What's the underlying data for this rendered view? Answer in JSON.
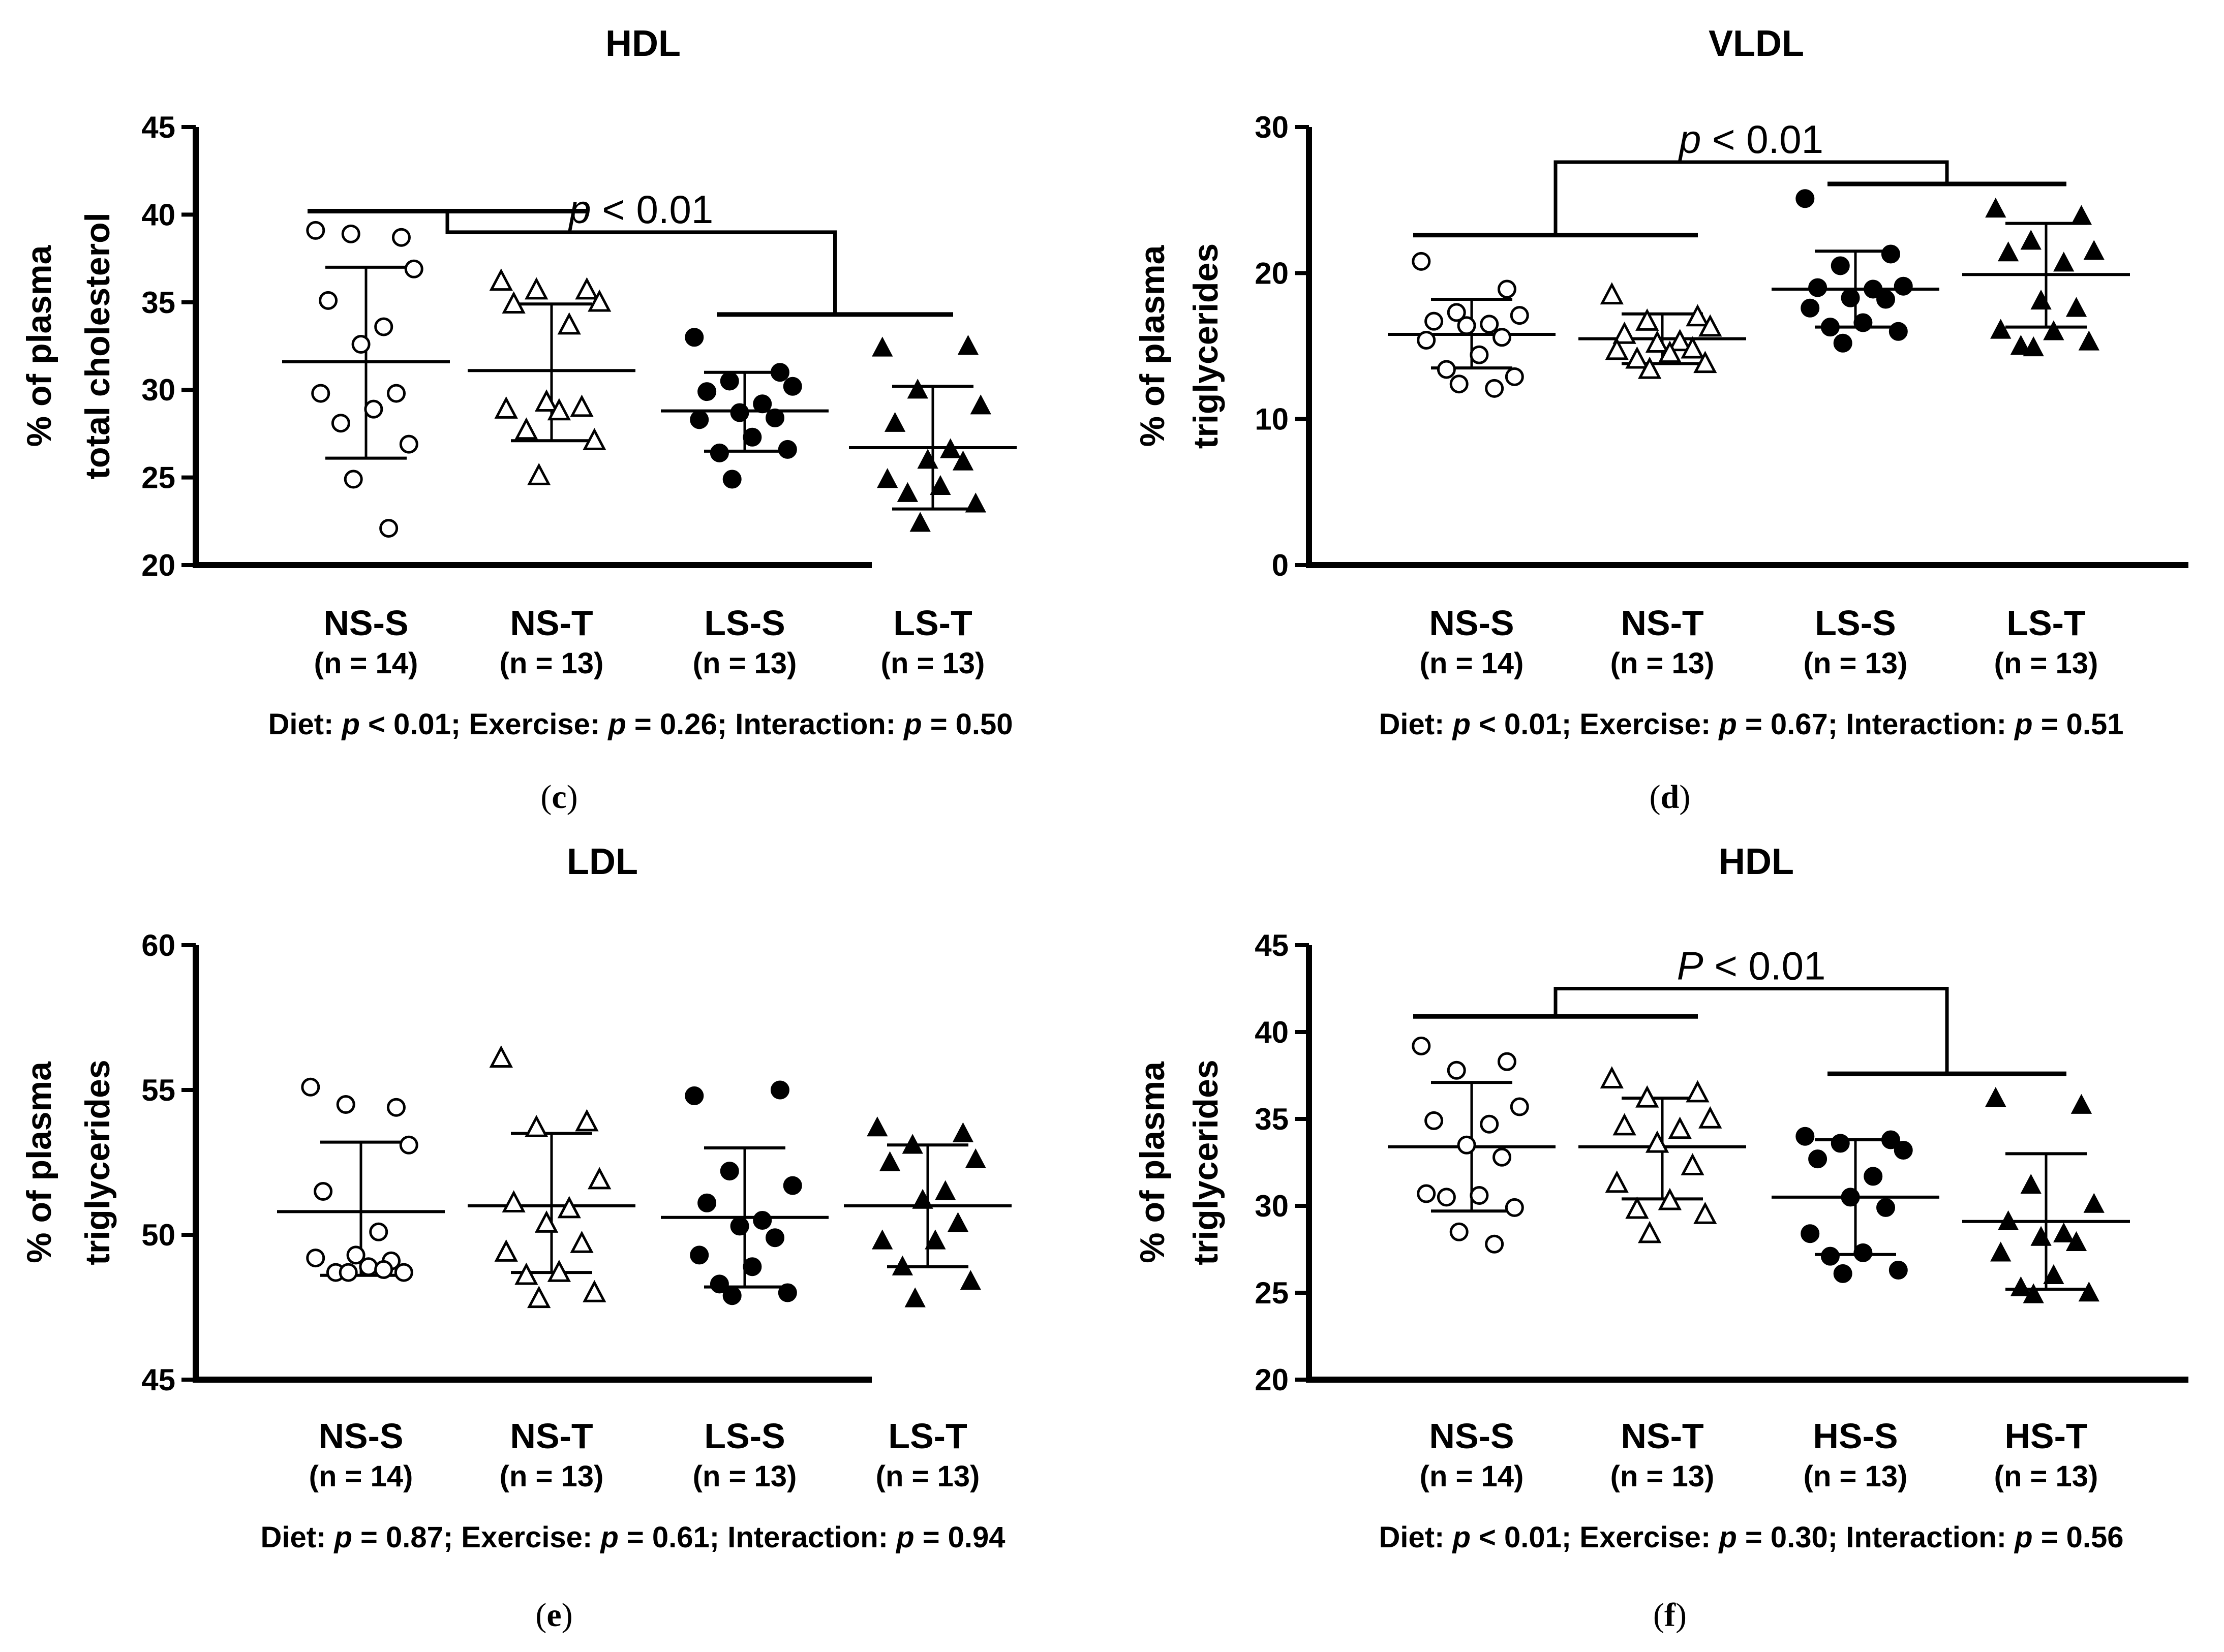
{
  "chart_data": [
    {
      "type": "scatter",
      "panel_label": "c",
      "title": "HDL",
      "ylabel": [
        "% of plasma",
        "total cholesterol"
      ],
      "ylim": [
        20,
        45
      ],
      "yticks": [
        20,
        25,
        30,
        35,
        40,
        45
      ],
      "categories": [
        "NS-S",
        "NS-T",
        "LS-S",
        "LS-T"
      ],
      "n_labels": [
        "(n = 14)",
        "(n = 13)",
        "(n = 13)",
        "(n = 13)"
      ],
      "groups": [
        {
          "name": "NS-S",
          "marker": "open-circle",
          "mean": 31.6,
          "sd_low": 26.1,
          "sd_high": 37.0,
          "values": [
            39.1,
            38.7,
            38.9,
            36.9,
            35.1,
            33.6,
            32.6,
            29.8,
            29.8,
            28.9,
            28.1,
            26.9,
            24.9,
            22.1
          ]
        },
        {
          "name": "NS-T",
          "marker": "open-triangle",
          "mean": 31.1,
          "sd_low": 27.1,
          "sd_high": 34.9,
          "values": [
            36.2,
            35.7,
            35.7,
            35.0,
            34.9,
            33.7,
            29.3,
            29.0,
            28.9,
            28.8,
            27.7,
            27.1,
            25.1
          ]
        },
        {
          "name": "LS-S",
          "marker": "filled-circle",
          "mean": 28.8,
          "sd_low": 26.5,
          "sd_high": 31.0,
          "values": [
            33.0,
            31.0,
            30.5,
            30.2,
            29.9,
            29.2,
            28.7,
            28.4,
            28.3,
            27.3,
            26.4,
            26.6,
            24.9
          ]
        },
        {
          "name": "LS-T",
          "marker": "filled-triangle",
          "mean": 26.7,
          "sd_low": 23.2,
          "sd_high": 30.2,
          "values": [
            32.4,
            32.5,
            30.0,
            29.1,
            28.1,
            26.6,
            26.0,
            25.9,
            24.9,
            24.5,
            24.1,
            23.5,
            22.4
          ]
        }
      ],
      "bracket": {
        "left": [
          0,
          1
        ],
        "right": [
          2,
          3
        ],
        "label_italic": "p",
        "label_rest": " < 0.01",
        "left_y": 40.2,
        "right_y": 34.3,
        "top_y": 39.0
      },
      "stats_text": [
        {
          "t": "Diet: "
        },
        {
          "t": "p",
          "i": true
        },
        {
          "t": " < 0.01; Exercise: "
        },
        {
          "t": "p",
          "i": true
        },
        {
          "t": " = 0.26; Interaction: "
        },
        {
          "t": "p",
          "i": true
        },
        {
          "t": " = 0.50"
        }
      ]
    },
    {
      "type": "scatter",
      "panel_label": "d",
      "title": "VLDL",
      "ylabel": [
        "% of plasma",
        "triglycerides"
      ],
      "ylim": [
        0,
        30
      ],
      "yticks": [
        0,
        10,
        20,
        30
      ],
      "categories": [
        "NS-S",
        "NS-T",
        "LS-S",
        "LS-T"
      ],
      "n_labels": [
        "(n = 14)",
        "(n = 13)",
        "(n = 13)",
        "(n = 13)"
      ],
      "groups": [
        {
          "name": "NS-S",
          "marker": "open-circle",
          "mean": 15.8,
          "sd_low": 13.5,
          "sd_high": 18.2,
          "values": [
            20.8,
            18.9,
            17.3,
            17.1,
            16.7,
            16.5,
            16.4,
            15.6,
            15.4,
            14.4,
            13.4,
            12.9,
            12.4,
            12.1
          ]
        },
        {
          "name": "NS-T",
          "marker": "open-triangle",
          "mean": 15.5,
          "sd_low": 13.8,
          "sd_high": 17.2,
          "values": [
            18.5,
            17.0,
            16.7,
            16.3,
            15.8,
            15.3,
            15.2,
            14.8,
            14.7,
            14.5,
            14.1,
            13.8,
            13.4
          ]
        },
        {
          "name": "LS-S",
          "marker": "filled-circle",
          "mean": 18.9,
          "sd_low": 16.3,
          "sd_high": 21.5,
          "values": [
            25.1,
            21.3,
            20.5,
            19.1,
            19.0,
            18.9,
            18.3,
            18.2,
            17.6,
            16.6,
            16.3,
            16.0,
            15.2
          ]
        },
        {
          "name": "LS-T",
          "marker": "filled-triangle",
          "mean": 19.9,
          "sd_low": 16.3,
          "sd_high": 23.4,
          "values": [
            24.4,
            23.9,
            22.2,
            21.5,
            21.4,
            20.7,
            18.1,
            17.6,
            16.1,
            16.0,
            15.0,
            15.3,
            14.9
          ]
        }
      ],
      "bracket": {
        "left": [
          0,
          1
        ],
        "right": [
          2,
          3
        ],
        "label_italic": "p",
        "label_rest": " < 0.01",
        "left_y": 22.6,
        "right_y": 26.1,
        "top_y": 27.6
      },
      "stats_text": [
        {
          "t": "Diet: "
        },
        {
          "t": "p",
          "i": true
        },
        {
          "t": " < 0.01; Exercise: "
        },
        {
          "t": "p",
          "i": true
        },
        {
          "t": " = 0.67; Interaction: "
        },
        {
          "t": "p",
          "i": true
        },
        {
          "t": " = 0.51"
        }
      ]
    },
    {
      "type": "scatter",
      "panel_label": "e",
      "title": "LDL",
      "ylabel": [
        "% of plasma",
        "triglycerides"
      ],
      "ylim": [
        45,
        60
      ],
      "yticks": [
        45,
        50,
        55,
        60
      ],
      "categories": [
        "NS-S",
        "NS-T",
        "LS-S",
        "LS-T"
      ],
      "n_labels": [
        "(n = 14)",
        "(n = 13)",
        "(n = 13)",
        "(n = 13)"
      ],
      "groups": [
        {
          "name": "NS-S",
          "marker": "open-circle",
          "mean": 50.8,
          "sd_low": 48.6,
          "sd_high": 53.2,
          "values": [
            55.1,
            54.4,
            54.5,
            53.1,
            51.5,
            50.1,
            49.3,
            49.1,
            49.2,
            48.9,
            48.7,
            48.7,
            48.7,
            48.8
          ]
        },
        {
          "name": "NS-T",
          "marker": "open-triangle",
          "mean": 51.0,
          "sd_low": 48.7,
          "sd_high": 53.5,
          "values": [
            56.1,
            53.9,
            53.7,
            51.9,
            51.1,
            50.9,
            50.4,
            49.7,
            49.4,
            48.7,
            48.6,
            48.0,
            47.8
          ]
        },
        {
          "name": "LS-S",
          "marker": "filled-circle",
          "mean": 50.6,
          "sd_low": 48.2,
          "sd_high": 53.0,
          "values": [
            54.8,
            55.0,
            52.2,
            51.7,
            51.1,
            50.5,
            50.3,
            49.9,
            49.3,
            48.9,
            48.3,
            48.0,
            47.9
          ]
        },
        {
          "name": "LS-T",
          "marker": "filled-triangle",
          "mean": 51.0,
          "sd_low": 48.9,
          "sd_high": 53.1,
          "values": [
            53.7,
            53.5,
            53.1,
            52.6,
            52.5,
            51.5,
            51.2,
            50.4,
            49.8,
            49.8,
            48.9,
            48.4,
            47.8
          ]
        }
      ],
      "stats_text": [
        {
          "t": "Diet: "
        },
        {
          "t": "p",
          "i": true
        },
        {
          "t": " = 0.87; Exercise: "
        },
        {
          "t": "p",
          "i": true
        },
        {
          "t": " = 0.61; Interaction: "
        },
        {
          "t": "p",
          "i": true
        },
        {
          "t": " = 0.94"
        }
      ]
    },
    {
      "type": "scatter",
      "panel_label": "f",
      "title": "HDL",
      "ylabel": [
        "% of plasma",
        "triglycerides"
      ],
      "ylim": [
        20,
        45
      ],
      "yticks": [
        20,
        25,
        30,
        35,
        40,
        45
      ],
      "categories": [
        "NS-S",
        "NS-T",
        "HS-S",
        "HS-T"
      ],
      "n_labels": [
        "(n = 14)",
        "(n = 13)",
        "(n = 13)",
        "(n = 13)"
      ],
      "groups": [
        {
          "name": "NS-S",
          "marker": "open-circle",
          "mean": 33.4,
          "sd_low": 29.7,
          "sd_high": 37.1,
          "values": [
            39.2,
            38.3,
            37.8,
            35.7,
            34.9,
            34.7,
            33.5,
            32.8,
            30.7,
            30.6,
            30.5,
            29.9,
            28.5,
            27.8
          ]
        },
        {
          "name": "NS-T",
          "marker": "open-triangle",
          "mean": 33.4,
          "sd_low": 30.4,
          "sd_high": 36.2,
          "values": [
            37.3,
            36.5,
            36.2,
            35.0,
            34.6,
            34.4,
            33.6,
            32.3,
            31.3,
            30.3,
            29.8,
            29.5,
            28.4
          ]
        },
        {
          "name": "HS-S",
          "marker": "filled-circle",
          "mean": 30.5,
          "sd_low": 27.2,
          "sd_high": 33.8,
          "values": [
            34.0,
            33.8,
            33.6,
            33.2,
            32.7,
            31.7,
            30.5,
            29.9,
            28.4,
            27.3,
            27.1,
            26.3,
            26.1
          ]
        },
        {
          "name": "HS-T",
          "marker": "filled-triangle",
          "mean": 29.1,
          "sd_low": 25.2,
          "sd_high": 33.0,
          "values": [
            36.2,
            35.8,
            31.2,
            30.1,
            29.1,
            28.4,
            28.2,
            27.9,
            27.3,
            26.0,
            25.3,
            25.0,
            24.9
          ]
        }
      ],
      "bracket": {
        "left": [
          0,
          1
        ],
        "right": [
          2,
          3
        ],
        "label_italic": "P",
        "label_rest": " < 0.01",
        "left_y": 40.9,
        "right_y": 37.6,
        "top_y": 42.5
      },
      "stats_text": [
        {
          "t": "Diet: "
        },
        {
          "t": "p",
          "i": true
        },
        {
          "t": " < 0.01; Exercise: "
        },
        {
          "t": "p",
          "i": true
        },
        {
          "t": " = 0.30; Interaction: "
        },
        {
          "t": "p",
          "i": true
        },
        {
          "t": " = 0.56"
        }
      ]
    }
  ]
}
